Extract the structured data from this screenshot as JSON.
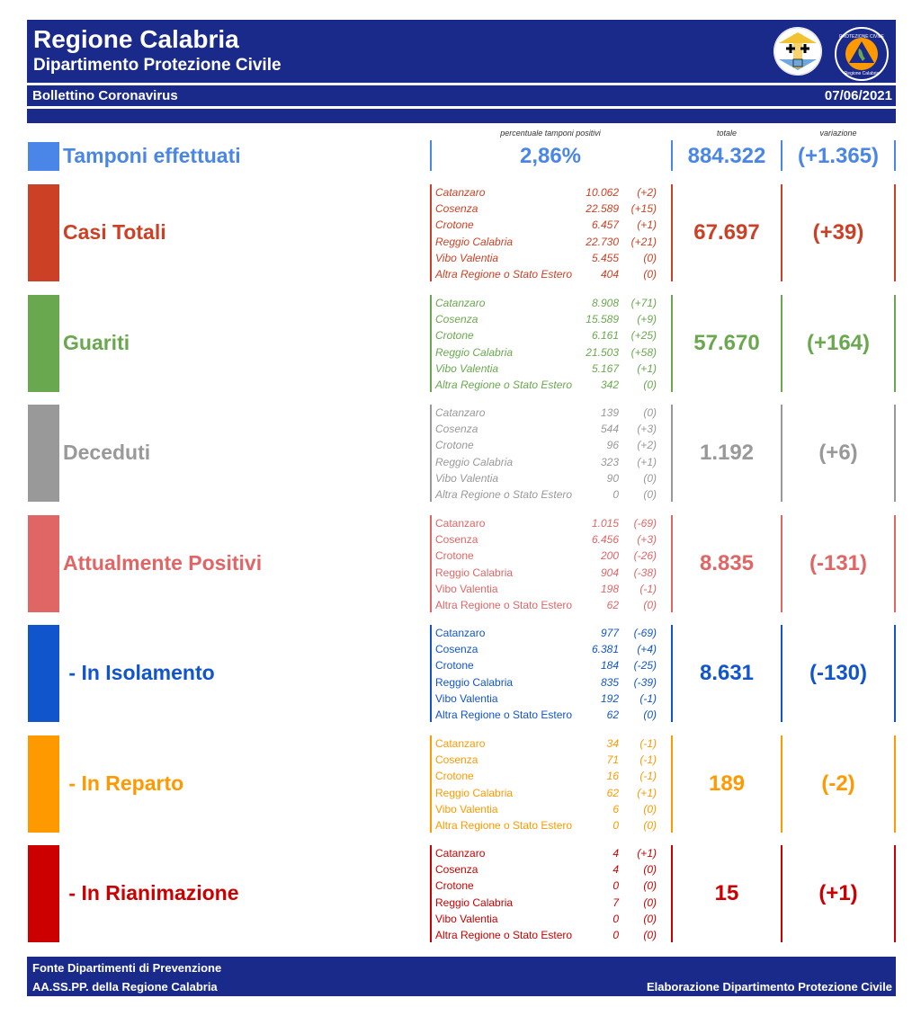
{
  "header": {
    "title": "Regione Calabria",
    "subtitle": "Dipartimento Protezione Civile",
    "bulletin": "Bollettino Coronavirus",
    "date": "07/06/2021",
    "logo2_text_top": "PROTEZIONE CIVILE",
    "logo2_text_bottom": "Regione Calabria"
  },
  "columns": {
    "pct_label": "percentuale tamponi positivi",
    "total_label": "totale",
    "change_label": "variazione"
  },
  "tamponi": {
    "label": "Tamponi effettuati",
    "pct": "2,86%",
    "total": "884.322",
    "change": "(+1.365)",
    "color": "#4a86e8"
  },
  "sections": [
    {
      "id": "casi-totali",
      "label": "Casi Totali",
      "color": "#cc4125",
      "italic": true,
      "total": "67.697",
      "change": "(+39)",
      "rows": [
        {
          "name": "Catanzaro",
          "value": "10.062",
          "delta": "(+2)"
        },
        {
          "name": "Cosenza",
          "value": "22.589",
          "delta": "(+15)"
        },
        {
          "name": "Crotone",
          "value": "6.457",
          "delta": "(+1)"
        },
        {
          "name": "Reggio Calabria",
          "value": "22.730",
          "delta": "(+21)"
        },
        {
          "name": "Vibo Valentia",
          "value": "5.455",
          "delta": "(0)"
        },
        {
          "name": "Altra Regione o Stato Estero",
          "value": "404",
          "delta": "(0)"
        }
      ]
    },
    {
      "id": "guariti",
      "label": "Guariti",
      "color": "#6aa84f",
      "italic": true,
      "total": "57.670",
      "change": "(+164)",
      "rows": [
        {
          "name": "Catanzaro",
          "value": "8.908",
          "delta": "(+71)"
        },
        {
          "name": "Cosenza",
          "value": "15.589",
          "delta": "(+9)"
        },
        {
          "name": "Crotone",
          "value": "6.161",
          "delta": "(+25)"
        },
        {
          "name": "Reggio Calabria",
          "value": "21.503",
          "delta": "(+58)"
        },
        {
          "name": "Vibo Valentia",
          "value": "5.167",
          "delta": "(+1)"
        },
        {
          "name": "Altra Regione o Stato Estero",
          "value": "342",
          "delta": "(0)"
        }
      ]
    },
    {
      "id": "deceduti",
      "label": "Deceduti",
      "color": "#999999",
      "italic": true,
      "total": "1.192",
      "change": "(+6)",
      "rows": [
        {
          "name": "Catanzaro",
          "value": "139",
          "delta": "(0)"
        },
        {
          "name": "Cosenza",
          "value": "544",
          "delta": "(+3)"
        },
        {
          "name": "Crotone",
          "value": "96",
          "delta": "(+2)"
        },
        {
          "name": "Reggio Calabria",
          "value": "323",
          "delta": "(+1)"
        },
        {
          "name": "Vibo Valentia",
          "value": "90",
          "delta": "(0)"
        },
        {
          "name": "Altra Regione o Stato Estero",
          "value": "0",
          "delta": "(0)"
        }
      ]
    },
    {
      "id": "attualmente-positivi",
      "label": "Attualmente Positivi",
      "color": "#e06666",
      "italic": false,
      "total": "8.835",
      "change": "(-131)",
      "rows": [
        {
          "name": "Catanzaro",
          "value": "1.015",
          "delta": "(-69)"
        },
        {
          "name": "Cosenza",
          "value": "6.456",
          "delta": "(+3)"
        },
        {
          "name": "Crotone",
          "value": "200",
          "delta": "(-26)"
        },
        {
          "name": "Reggio Calabria",
          "value": "904",
          "delta": "(-38)"
        },
        {
          "name": "Vibo Valentia",
          "value": "198",
          "delta": "(-1)"
        },
        {
          "name": "Altra Regione o Stato Estero",
          "value": "62",
          "delta": "(0)"
        }
      ]
    },
    {
      "id": "in-isolamento",
      "label": " - In Isolamento",
      "color": "#1155cc",
      "italic": false,
      "total": "8.631",
      "change": "(-130)",
      "rows": [
        {
          "name": "Catanzaro",
          "value": "977",
          "delta": "(-69)"
        },
        {
          "name": "Cosenza",
          "value": "6.381",
          "delta": "(+4)"
        },
        {
          "name": "Crotone",
          "value": "184",
          "delta": "(-25)"
        },
        {
          "name": "Reggio Calabria",
          "value": "835",
          "delta": "(-39)"
        },
        {
          "name": "Vibo Valentia",
          "value": "192",
          "delta": "(-1)"
        },
        {
          "name": "Altra Regione o Stato Estero",
          "value": "62",
          "delta": "(0)"
        }
      ]
    },
    {
      "id": "in-reparto",
      "label": " - In Reparto",
      "color": "#ff9900",
      "italic": false,
      "total": "189",
      "change": "(-2)",
      "rows": [
        {
          "name": "Catanzaro",
          "value": "34",
          "delta": "(-1)"
        },
        {
          "name": "Cosenza",
          "value": "71",
          "delta": "(-1)"
        },
        {
          "name": "Crotone",
          "value": "16",
          "delta": "(-1)"
        },
        {
          "name": "Reggio Calabria",
          "value": "62",
          "delta": "(+1)"
        },
        {
          "name": "Vibo Valentia",
          "value": "6",
          "delta": "(0)"
        },
        {
          "name": "Altra Regione o Stato Estero",
          "value": "0",
          "delta": "(0)"
        }
      ]
    },
    {
      "id": "in-rianimazione",
      "label": " - In Rianimazione",
      "color": "#cc0000",
      "italic": false,
      "total": "15",
      "change": "(+1)",
      "rows": [
        {
          "name": "Catanzaro",
          "value": "4",
          "delta": "(+1)"
        },
        {
          "name": "Cosenza",
          "value": "4",
          "delta": "(0)"
        },
        {
          "name": "Crotone",
          "value": "0",
          "delta": "(0)"
        },
        {
          "name": "Reggio Calabria",
          "value": "7",
          "delta": "(0)"
        },
        {
          "name": "Vibo Valentia",
          "value": "0",
          "delta": "(0)"
        },
        {
          "name": "Altra Regione o Stato Estero",
          "value": "0",
          "delta": "(0)"
        }
      ]
    }
  ],
  "footer": {
    "source_line1": "Fonte Dipartimenti di Prevenzione",
    "source_line2": "AA.SS.PP.  della Regione Calabria",
    "credit": "Elaborazione Dipartimento Protezione Civile"
  }
}
